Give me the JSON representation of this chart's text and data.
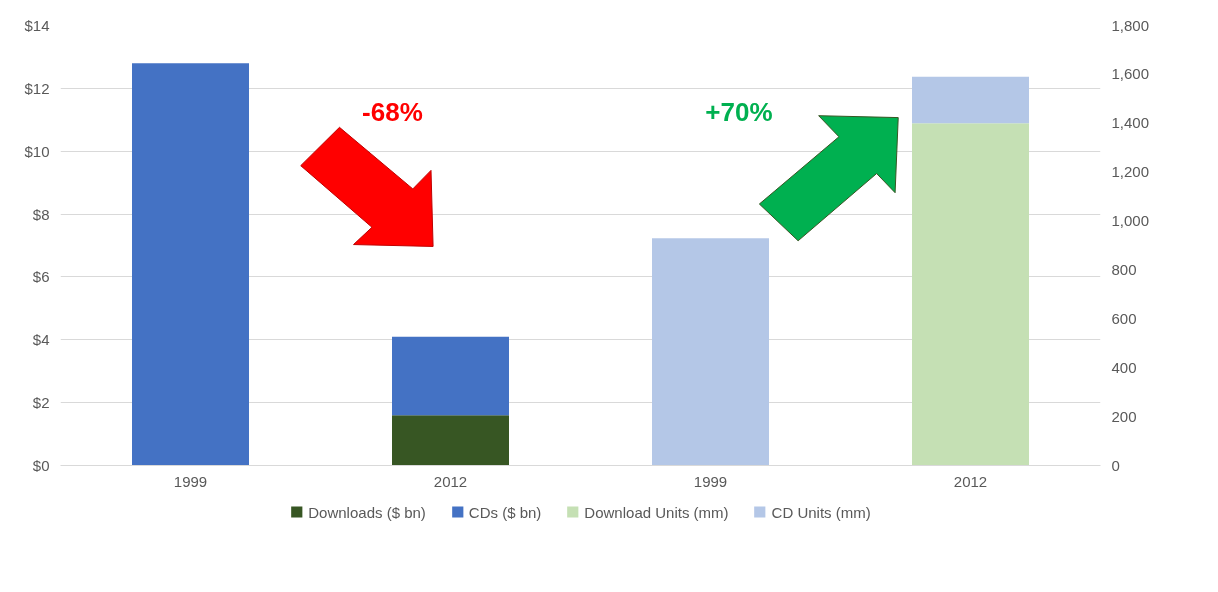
{
  "chart_data": {
    "type": "bar",
    "stacked": true,
    "categories": [
      "1999",
      "2012",
      "1999",
      "2012"
    ],
    "series": [
      {
        "name": "Downloads ($ bn)",
        "color": "#375623",
        "values": [
          0,
          1.6,
          null,
          null
        ]
      },
      {
        "name": "CDs ($ bn)",
        "color": "#4472c4",
        "values": [
          12.8,
          2.5,
          null,
          null
        ]
      },
      {
        "name": "Download Units (mm)",
        "color": "#c5e0b4",
        "axis": "y2",
        "values": [
          null,
          null,
          0,
          1400
        ]
      },
      {
        "name": "CD Units (mm)",
        "color": "#b4c7e7",
        "axis": "y2",
        "values": [
          null,
          null,
          930,
          190
        ]
      }
    ],
    "ylim": [
      0,
      14
    ],
    "yticks": [
      {
        "value": 0,
        "label": "$0"
      },
      {
        "value": 2,
        "label": "$2"
      },
      {
        "value": 4,
        "label": "$4"
      },
      {
        "value": 6,
        "label": "$6"
      },
      {
        "value": 8,
        "label": "$8"
      },
      {
        "value": 10,
        "label": "$10"
      },
      {
        "value": 12,
        "label": "$12"
      },
      {
        "value": 14,
        "label": "$14"
      }
    ],
    "y2lim": [
      0,
      1800
    ],
    "y2ticks": [
      0,
      200,
      400,
      600,
      800,
      {
        "value": 1000,
        "label": "1,000"
      },
      {
        "value": 1200,
        "label": "1,200"
      },
      {
        "value": 1400,
        "label": "1,400"
      },
      {
        "value": 1600,
        "label": "1,600"
      },
      {
        "value": 1800,
        "label": "1,800"
      }
    ],
    "annotations": [
      "-68%",
      "+70%"
    ],
    "grid": "y",
    "legend": "bottom"
  }
}
